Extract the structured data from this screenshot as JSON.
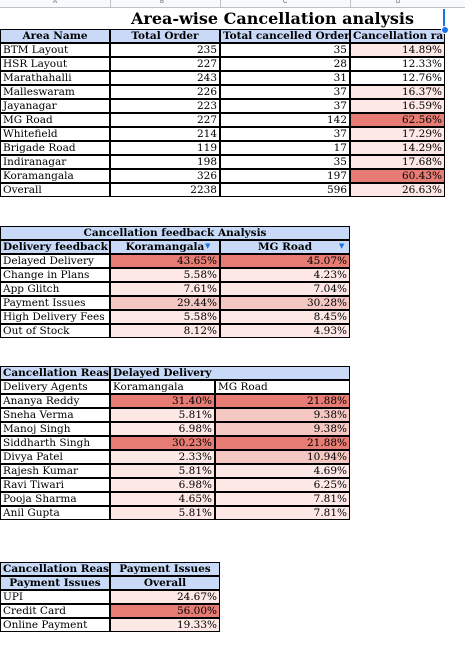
{
  "column_headers": [
    "A",
    "B",
    "C",
    "D"
  ],
  "table1": {
    "title": "Area-wise Cancellation analysis",
    "headers": [
      "Area Name",
      "Total Order",
      "Total cancelled Orders",
      "Cancellation rate"
    ],
    "rows": [
      [
        "BTM Layout",
        "235",
        "35",
        "14.89%"
      ],
      [
        "HSR Layout",
        "227",
        "28",
        "12.33%"
      ],
      [
        "Marathahalli",
        "243",
        "31",
        "12.76%"
      ],
      [
        "Malleswaram",
        "226",
        "37",
        "16.37%"
      ],
      [
        "Jayanagar",
        "223",
        "37",
        "16.59%"
      ],
      [
        "MG Road",
        "227",
        "142",
        "62.56%"
      ],
      [
        "Whitefield",
        "214",
        "37",
        "17.29%"
      ],
      [
        "Brigade Road",
        "119",
        "17",
        "14.29%"
      ],
      [
        "Indiranagar",
        "198",
        "35",
        "17.68%"
      ],
      [
        "Koramangala",
        "326",
        "197",
        "60.43%"
      ],
      [
        "Overall",
        "2238",
        "596",
        "26.63%"
      ]
    ]
  },
  "table2": {
    "title": "Cancellation feedback Analysis",
    "headers": [
      "Delivery feedback",
      "Koramangala",
      "MG Road"
    ],
    "rows": [
      [
        "Delayed Delivery",
        "43.65%",
        "45.07%"
      ],
      [
        "Change in Plans",
        "5.58%",
        "4.23%"
      ],
      [
        "App Glitch",
        "7.61%",
        "7.04%"
      ],
      [
        "Payment Issues",
        "29.44%",
        "30.28%"
      ],
      [
        "High Delivery Fees",
        "5.58%",
        "8.45%"
      ],
      [
        "Out of Stock",
        "8.12%",
        "4.93%"
      ]
    ]
  },
  "table3": {
    "header_left": "Cancellation Reason",
    "header_right": "Delayed Delivery",
    "subheaders": [
      "Delivery Agents",
      "Koramangala",
      "MG Road"
    ],
    "rows": [
      [
        "Ananya Reddy",
        "31.40%",
        "21.88%"
      ],
      [
        "Sneha Verma",
        "5.81%",
        "9.38%"
      ],
      [
        "Manoj Singh",
        "6.98%",
        "9.38%"
      ],
      [
        "Siddharth Singh",
        "30.23%",
        "21.88%"
      ],
      [
        "Divya Patel",
        "2.33%",
        "10.94%"
      ],
      [
        "Rajesh Kumar",
        "5.81%",
        "4.69%"
      ],
      [
        "Ravi Tiwari",
        "6.98%",
        "6.25%"
      ],
      [
        "Pooja Sharma",
        "4.65%",
        "7.81%"
      ],
      [
        "Anil Gupta",
        "5.81%",
        "7.81%"
      ]
    ]
  },
  "table4": {
    "header_left": "Cancellation Reason",
    "header_right": "Payment Issues",
    "subheaders": [
      "Payment Issues",
      "Overall"
    ],
    "rows": [
      [
        "UPI",
        "24.67%"
      ],
      [
        "Credit Card",
        "56.00%"
      ],
      [
        "Online Payment",
        "19.33%"
      ]
    ]
  },
  "colors": {
    "header": "#c9daf8",
    "high": "#e67c73",
    "mid": "#f4c7c3",
    "low": "#fde8e6",
    "selection": "#1a73e8"
  }
}
